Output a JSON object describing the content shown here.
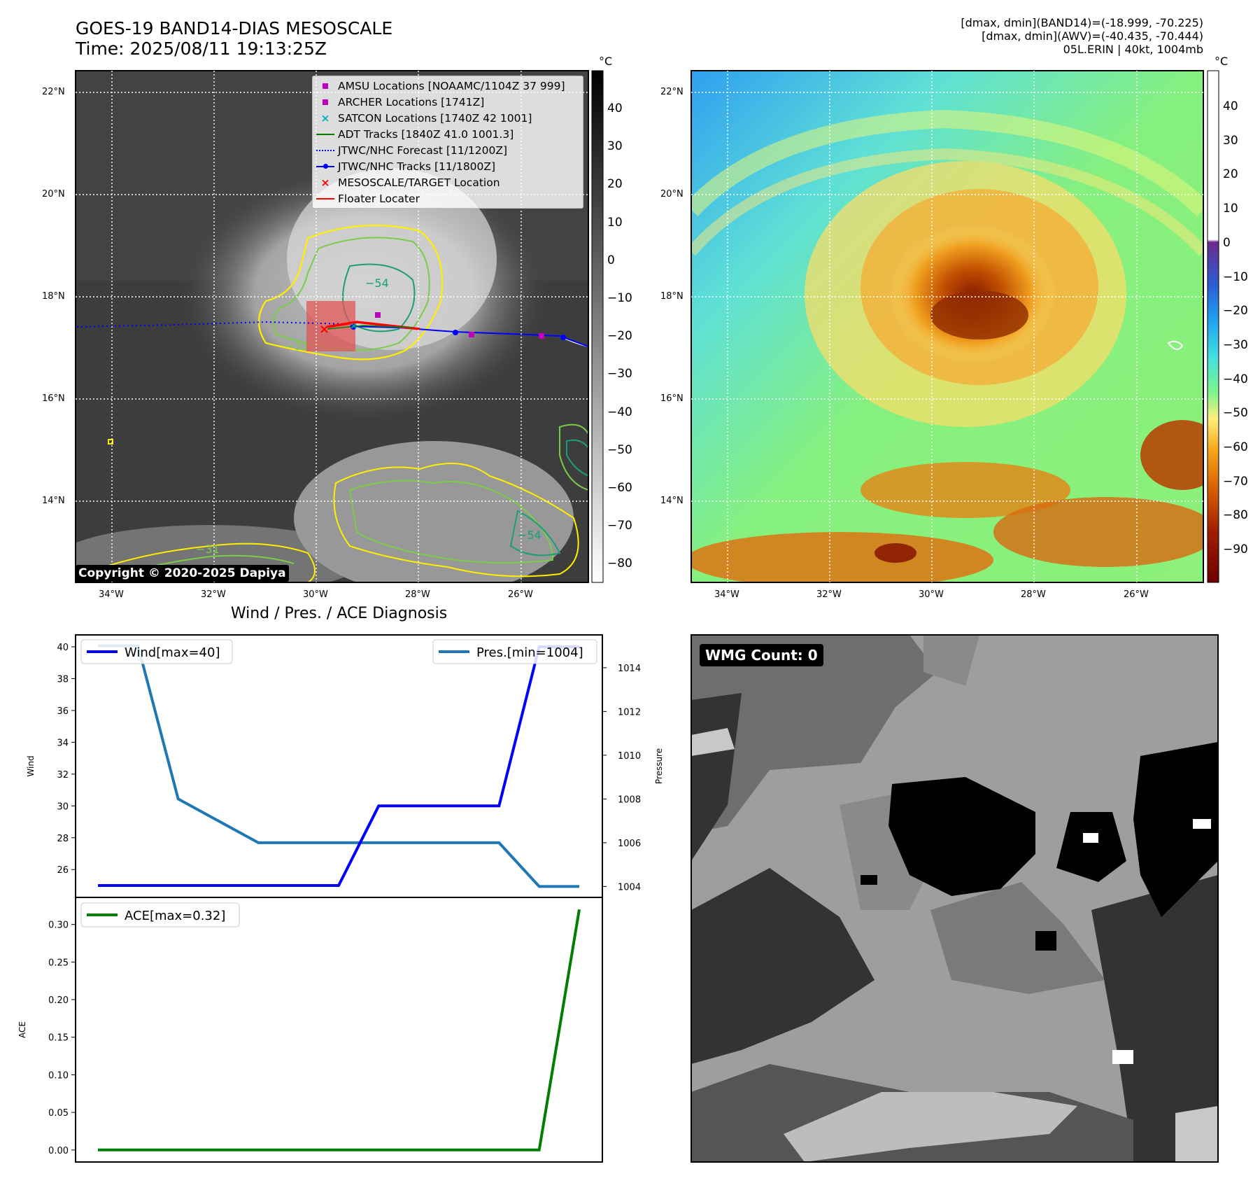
{
  "panel1": {
    "title_line1": "GOES-19 BAND14-DIAS MESOSCALE",
    "title_line2": "Time: 2025/08/11 19:13:25Z",
    "colorbar_unit": "°C",
    "colorbar_ticks": [
      "40",
      "30",
      "20",
      "10",
      "0",
      "−10",
      "−20",
      "−30",
      "−40",
      "−50",
      "−60",
      "−70",
      "−80"
    ],
    "lat_labels": [
      "22°N",
      "20°N",
      "18°N",
      "16°N",
      "14°N"
    ],
    "lon_labels": [
      "34°W",
      "32°W",
      "30°W",
      "28°W",
      "26°W"
    ],
    "contour_labels": [
      "−54",
      "−31",
      "−31",
      "−54"
    ],
    "copyright": "Copyright © 2020-2025 Dapiya",
    "legend": [
      {
        "symbol": "square",
        "color": "#bf00bf",
        "label": "AMSU Locations [NOAAMC/1104Z 37 999]"
      },
      {
        "symbol": "square",
        "color": "#bf00bf",
        "label": "ARCHER Locations [1741Z]"
      },
      {
        "symbol": "x",
        "color": "#00b3b3",
        "label": "SATCON Locations [1740Z 42 1001]"
      },
      {
        "symbol": "line",
        "color": "#008000",
        "label": "ADT Tracks [1840Z 41.0 1001.3]"
      },
      {
        "symbol": "dotted",
        "color": "#0000ff",
        "label": "JTWC/NHC Forecast [11/1200Z]"
      },
      {
        "symbol": "linedot",
        "color": "#0000ff",
        "label": "JTWC/NHC Tracks [11/1800Z]"
      },
      {
        "symbol": "x",
        "color": "#ff0000",
        "label": "MESOSCALE/TARGET Location"
      },
      {
        "symbol": "line",
        "color": "#ff0000",
        "label": "Floater Locater"
      }
    ]
  },
  "panel2": {
    "info_line1": "[dmax, dmin](BAND14)=(-18.999, -70.225)",
    "info_line2": "[dmax, dmin](AWV)=(-40.435, -70.444)",
    "info_line3": "05L.ERIN | 40kt, 1004mb",
    "colorbar_unit": "°C",
    "colorbar_ticks": [
      "40",
      "30",
      "20",
      "10",
      "0",
      "−10",
      "−20",
      "−30",
      "−40",
      "−50",
      "−60",
      "−70",
      "−80",
      "−90"
    ],
    "lat_labels": [
      "22°N",
      "20°N",
      "18°N",
      "16°N",
      "14°N"
    ],
    "lon_labels": [
      "34°W",
      "32°W",
      "30°W",
      "28°W",
      "26°W"
    ]
  },
  "panel4": {
    "badge": "WMG Count: 0"
  },
  "chart_data": [
    {
      "type": "line",
      "title": "Wind / Pres. / ACE Diagnosis",
      "x": [
        0,
        1,
        2,
        3,
        4,
        5,
        6,
        7,
        8,
        9,
        10,
        11,
        12
      ],
      "series": [
        {
          "name": "Wind[max=40]",
          "axis": "left",
          "color": "#0000ff",
          "values": [
            25,
            25,
            25,
            25,
            25,
            25,
            25,
            30,
            30,
            30,
            30,
            40,
            40
          ]
        },
        {
          "name": "Pres.[min=1004]",
          "axis": "right",
          "color": "#1f77b4",
          "values": [
            1015,
            1015,
            1008,
            1007,
            1006,
            1006,
            1006,
            1006,
            1006,
            1006,
            1006,
            1004,
            1004
          ]
        }
      ],
      "ylabel": "Wind",
      "y2label": "Pressure",
      "ylim": [
        24.25,
        40.75
      ],
      "y2lim": [
        1003.5,
        1015.5
      ],
      "yticks": [
        26,
        28,
        30,
        32,
        34,
        36,
        38,
        40
      ],
      "y2ticks": [
        1004,
        1006,
        1008,
        1010,
        1012,
        1014
      ]
    },
    {
      "type": "line",
      "x": [
        0,
        1,
        2,
        3,
        4,
        5,
        6,
        7,
        8,
        9,
        10,
        11,
        12
      ],
      "series": [
        {
          "name": "ACE[max=0.32]",
          "color": "#008000",
          "values": [
            0,
            0,
            0,
            0,
            0,
            0,
            0,
            0,
            0,
            0,
            0,
            0,
            0.32
          ]
        }
      ],
      "ylabel": "ACE",
      "ylim": [
        -0.016,
        0.336
      ],
      "yticks": [
        "0.00",
        "0.05",
        "0.10",
        "0.15",
        "0.20",
        "0.25",
        "0.30"
      ]
    }
  ]
}
